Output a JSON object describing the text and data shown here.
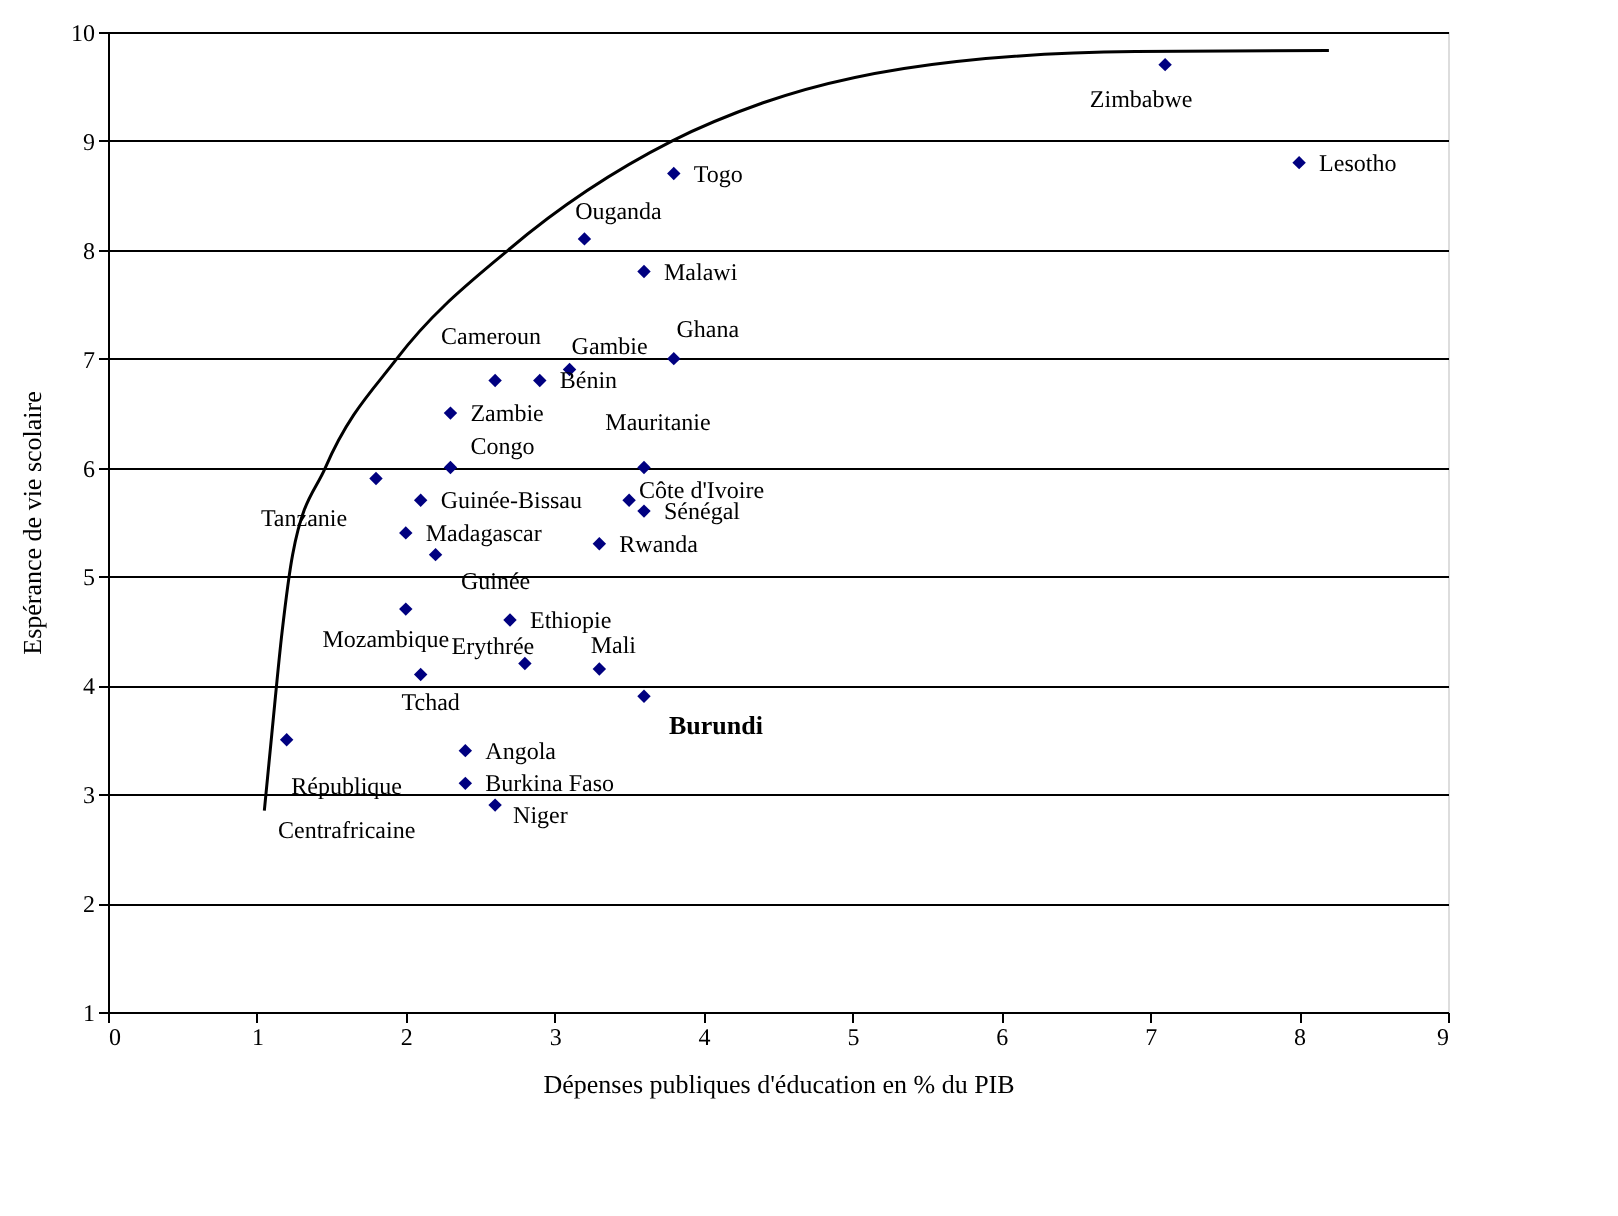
{
  "chart_data": {
    "type": "scatter",
    "xlabel": "Dépenses publiques d'éducation en % du PIB",
    "ylabel": "Espérance de vie scolaire",
    "xlim": [
      0,
      9
    ],
    "xticks": [
      0,
      1,
      2,
      3,
      4,
      5,
      6,
      7,
      8,
      9
    ],
    "ylim": [
      1,
      10
    ],
    "yticks": [
      1,
      2,
      3,
      4,
      5,
      6,
      7,
      8,
      9,
      10
    ],
    "grid": "y",
    "marker": "diamond",
    "series": [
      {
        "color": "#000080",
        "x": [
          3.8,
          3.2,
          3.6,
          3.8,
          3.1,
          2.6,
          2.9,
          2.3,
          2.3,
          3.6,
          1.8,
          2.1,
          3.5,
          3.6,
          2.0,
          3.3,
          2.2,
          2.0,
          2.7,
          2.8,
          3.3,
          2.1,
          3.6,
          1.2,
          2.4,
          2.4,
          2.6,
          7.1,
          8.0
        ],
        "values": [
          8.7,
          8.1,
          7.8,
          7.0,
          6.9,
          6.8,
          6.8,
          6.5,
          6.0,
          6.0,
          5.9,
          5.7,
          5.7,
          5.6,
          5.4,
          5.3,
          5.2,
          4.7,
          4.6,
          4.2,
          4.15,
          4.1,
          3.9,
          3.5,
          3.4,
          3.1,
          2.9,
          9.7,
          8.8
        ]
      },
      {
        "type": "line",
        "color": "#000000",
        "marker": "none",
        "x": [
          1.05,
          1.1,
          1.17,
          1.24,
          1.46,
          1.94,
          2.69,
          3.79,
          4.4,
          5.7,
          6.9,
          8.2
        ],
        "values": [
          2.85,
          3.55,
          4.5,
          5.2,
          6.0,
          7.0,
          8.0,
          9.0,
          9.35,
          9.73,
          9.82,
          9.83
        ]
      }
    ],
    "annotations": [
      {
        "text": "Togo",
        "x": 3.8,
        "y": 8.7
      },
      {
        "text": "Ouganda",
        "x": 3.2,
        "y": 8.1
      },
      {
        "text": "Malawi",
        "x": 3.6,
        "y": 7.8
      },
      {
        "text": "Ghana",
        "x": 3.8,
        "y": 7.0
      },
      {
        "text": "Gambie",
        "x": 3.1,
        "y": 6.9
      },
      {
        "text": "Cameroun",
        "x": 2.6,
        "y": 6.8
      },
      {
        "text": "Bénin",
        "x": 2.9,
        "y": 6.8
      },
      {
        "text": "Zambie",
        "x": 2.3,
        "y": 6.5
      },
      {
        "text": "Congo",
        "x": 2.3,
        "y": 6.0
      },
      {
        "text": "Mauritanie",
        "x": 3.6,
        "y": 6.0
      },
      {
        "text": "Tanzanie",
        "x": 1.8,
        "y": 5.9
      },
      {
        "text": "Guinée-Bissau",
        "x": 2.1,
        "y": 5.7
      },
      {
        "text": "Côte d'Ivoire",
        "x": 3.5,
        "y": 5.7
      },
      {
        "text": "Sénégal",
        "x": 3.6,
        "y": 5.6
      },
      {
        "text": "Madagascar",
        "x": 2.0,
        "y": 5.4
      },
      {
        "text": "Rwanda",
        "x": 3.3,
        "y": 5.3
      },
      {
        "text": "Guinée",
        "x": 2.2,
        "y": 5.2
      },
      {
        "text": "Mozambique",
        "x": 2.0,
        "y": 4.7
      },
      {
        "text": "Ethiopie",
        "x": 2.7,
        "y": 4.6
      },
      {
        "text": "Erythrée",
        "x": 2.8,
        "y": 4.2
      },
      {
        "text": "Mali",
        "x": 3.3,
        "y": 4.15
      },
      {
        "text": "Tchad",
        "x": 2.1,
        "y": 4.1
      },
      {
        "text": "Burundi",
        "x": 3.6,
        "y": 3.9
      },
      {
        "text": "République\nCentrafricaine",
        "x": 1.2,
        "y": 3.5
      },
      {
        "text": "Angola",
        "x": 2.4,
        "y": 3.4
      },
      {
        "text": "Burkina Faso",
        "x": 2.4,
        "y": 3.1
      },
      {
        "text": "Niger",
        "x": 2.6,
        "y": 2.9
      },
      {
        "text": "Zimbabwe",
        "x": 7.1,
        "y": 9.7
      },
      {
        "text": "Lesotho",
        "x": 8.0,
        "y": 8.8
      }
    ]
  }
}
